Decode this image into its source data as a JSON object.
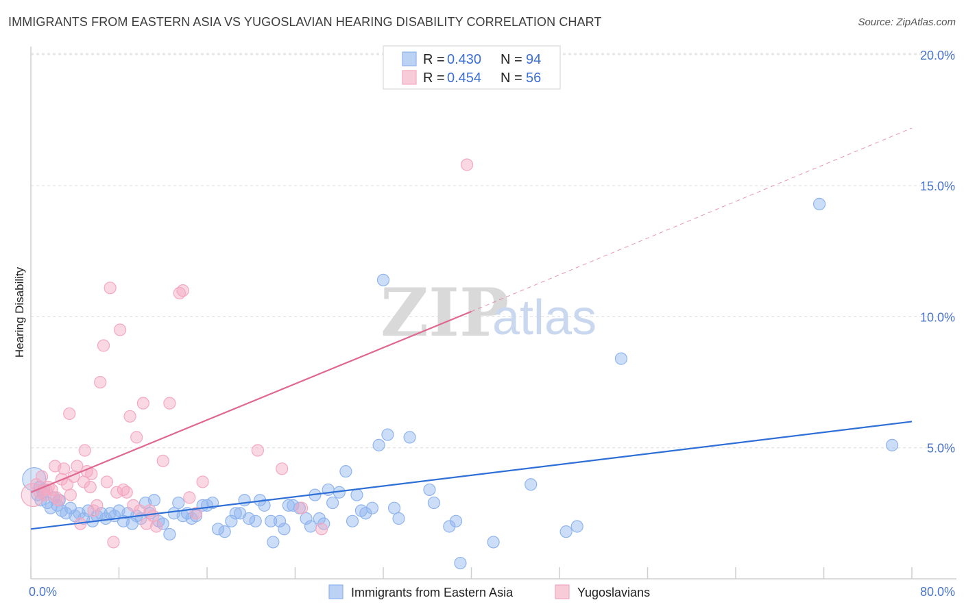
{
  "header": {
    "title": "IMMIGRANTS FROM EASTERN ASIA VS YUGOSLAVIAN HEARING DISABILITY CORRELATION CHART",
    "source": "Source: ZipAtlas.com"
  },
  "watermark": {
    "zip": "ZIP",
    "atlas": "atlas"
  },
  "chart_data": {
    "type": "scatter",
    "title": "IMMIGRANTS FROM EASTERN ASIA VS YUGOSLAVIAN HEARING DISABILITY CORRELATION CHART",
    "xlabel": "",
    "ylabel": "Hearing Disability",
    "xlim": [
      0,
      80
    ],
    "ylim": [
      0,
      20.5
    ],
    "x_tick_labels": [
      "0.0%",
      "80.0%"
    ],
    "y_ticks": [
      5,
      10,
      15,
      20
    ],
    "y_tick_labels": [
      "5.0%",
      "10.0%",
      "15.0%",
      "20.0%"
    ],
    "grid": "horizontal dashed",
    "legend_position": "top-center",
    "legend": [
      {
        "r_label": "R = ",
        "r": "0.430",
        "n_label": "N = ",
        "n": "94",
        "color": "#8fb4ee"
      },
      {
        "r_label": "R = ",
        "r": "0.454",
        "n_label": "N = ",
        "n": "56",
        "color": "#f4a8c0"
      }
    ],
    "series": [
      {
        "name": "Immigrants from Eastern Asia",
        "color": "#8fb4ee",
        "line_color": "#2d6fd6",
        "trend": {
          "x": [
            0,
            80
          ],
          "y": [
            1.9,
            6.0
          ],
          "dashed_extension": false
        },
        "points": [
          [
            0.3,
            3.8
          ],
          [
            0.6,
            3.2
          ],
          [
            0.9,
            3.0
          ],
          [
            1.2,
            3.4
          ],
          [
            1.5,
            2.9
          ],
          [
            1.8,
            2.7
          ],
          [
            2.1,
            3.1
          ],
          [
            2.4,
            2.8
          ],
          [
            2.8,
            2.6
          ],
          [
            3.2,
            2.5
          ],
          [
            3.6,
            2.7
          ],
          [
            4.0,
            2.4
          ],
          [
            4.4,
            2.5
          ],
          [
            4.8,
            2.3
          ],
          [
            5.2,
            2.6
          ],
          [
            5.6,
            2.2
          ],
          [
            6.0,
            2.4
          ],
          [
            6.4,
            2.5
          ],
          [
            6.8,
            2.3
          ],
          [
            7.2,
            2.5
          ],
          [
            7.6,
            2.4
          ],
          [
            8.0,
            2.6
          ],
          [
            8.4,
            2.2
          ],
          [
            8.8,
            2.5
          ],
          [
            9.2,
            2.1
          ],
          [
            9.6,
            2.4
          ],
          [
            10.0,
            2.3
          ],
          [
            10.4,
            2.9
          ],
          [
            10.8,
            2.5
          ],
          [
            11.2,
            3.0
          ],
          [
            11.6,
            2.2
          ],
          [
            12.0,
            2.1
          ],
          [
            12.6,
            1.7
          ],
          [
            13.0,
            2.5
          ],
          [
            13.4,
            2.9
          ],
          [
            13.8,
            2.4
          ],
          [
            14.2,
            2.5
          ],
          [
            14.6,
            2.3
          ],
          [
            15.0,
            2.4
          ],
          [
            15.6,
            2.8
          ],
          [
            16.0,
            2.8
          ],
          [
            16.5,
            2.9
          ],
          [
            17.0,
            1.9
          ],
          [
            17.6,
            1.8
          ],
          [
            18.2,
            2.2
          ],
          [
            18.6,
            2.5
          ],
          [
            19.0,
            2.5
          ],
          [
            19.4,
            3.0
          ],
          [
            19.8,
            2.3
          ],
          [
            20.4,
            2.2
          ],
          [
            20.8,
            3.0
          ],
          [
            21.2,
            2.8
          ],
          [
            21.8,
            2.2
          ],
          [
            22.0,
            1.4
          ],
          [
            22.6,
            2.2
          ],
          [
            23.0,
            1.9
          ],
          [
            23.4,
            2.8
          ],
          [
            23.8,
            2.8
          ],
          [
            24.4,
            2.7
          ],
          [
            25.0,
            2.3
          ],
          [
            25.4,
            2.0
          ],
          [
            25.8,
            3.2
          ],
          [
            26.2,
            2.3
          ],
          [
            26.6,
            2.1
          ],
          [
            27.0,
            3.4
          ],
          [
            27.4,
            2.9
          ],
          [
            28.0,
            3.3
          ],
          [
            28.6,
            4.1
          ],
          [
            29.2,
            2.2
          ],
          [
            29.6,
            3.2
          ],
          [
            30.0,
            2.6
          ],
          [
            30.4,
            2.5
          ],
          [
            31.0,
            2.7
          ],
          [
            31.6,
            5.1
          ],
          [
            32.4,
            5.5
          ],
          [
            32.0,
            11.4
          ],
          [
            33.0,
            2.7
          ],
          [
            33.4,
            2.3
          ],
          [
            34.4,
            5.4
          ],
          [
            36.2,
            3.4
          ],
          [
            36.6,
            2.9
          ],
          [
            38.0,
            2.0
          ],
          [
            38.6,
            2.2
          ],
          [
            39.0,
            0.6
          ],
          [
            42.0,
            1.4
          ],
          [
            45.4,
            3.6
          ],
          [
            48.6,
            1.8
          ],
          [
            49.6,
            2.0
          ],
          [
            53.6,
            8.4
          ],
          [
            71.6,
            14.3
          ],
          [
            78.2,
            5.1
          ],
          [
            0.8,
            3.5
          ],
          [
            1.1,
            3.3
          ],
          [
            2.6,
            3.0
          ]
        ]
      },
      {
        "name": "Yugoslavians",
        "color": "#f4a8c0",
        "line_color": "#e0678f",
        "trend": {
          "x": [
            0,
            40
          ],
          "y": [
            3.3,
            10.2
          ],
          "dashed_extension_to": [
            80,
            17.2
          ]
        },
        "points": [
          [
            0.2,
            3.2
          ],
          [
            0.5,
            3.6
          ],
          [
            0.8,
            3.3
          ],
          [
            1.0,
            3.9
          ],
          [
            1.3,
            3.2
          ],
          [
            1.6,
            3.5
          ],
          [
            1.9,
            3.4
          ],
          [
            2.2,
            4.3
          ],
          [
            2.5,
            3.0
          ],
          [
            2.8,
            3.8
          ],
          [
            3.0,
            4.2
          ],
          [
            3.3,
            3.6
          ],
          [
            3.6,
            3.2
          ],
          [
            3.9,
            3.9
          ],
          [
            4.2,
            4.3
          ],
          [
            4.5,
            2.1
          ],
          [
            4.8,
            3.7
          ],
          [
            5.1,
            4.1
          ],
          [
            5.4,
            3.5
          ],
          [
            5.7,
            2.6
          ],
          [
            6.0,
            2.8
          ],
          [
            6.3,
            7.5
          ],
          [
            6.6,
            8.9
          ],
          [
            6.9,
            3.7
          ],
          [
            7.2,
            11.1
          ],
          [
            7.5,
            1.4
          ],
          [
            7.8,
            3.3
          ],
          [
            8.1,
            9.5
          ],
          [
            8.4,
            3.4
          ],
          [
            8.7,
            3.3
          ],
          [
            9.0,
            6.2
          ],
          [
            9.3,
            2.8
          ],
          [
            9.6,
            5.4
          ],
          [
            9.9,
            2.6
          ],
          [
            10.2,
            6.7
          ],
          [
            10.5,
            2.1
          ],
          [
            10.8,
            2.6
          ],
          [
            11.1,
            2.4
          ],
          [
            11.4,
            2.0
          ],
          [
            12.0,
            4.5
          ],
          [
            12.6,
            6.7
          ],
          [
            13.5,
            10.9
          ],
          [
            13.8,
            11.0
          ],
          [
            14.4,
            3.1
          ],
          [
            15.0,
            2.5
          ],
          [
            15.6,
            3.7
          ],
          [
            20.6,
            4.9
          ],
          [
            22.8,
            4.2
          ],
          [
            24.6,
            2.7
          ],
          [
            26.4,
            1.9
          ],
          [
            39.6,
            15.8
          ],
          [
            3.5,
            6.3
          ],
          [
            4.9,
            4.9
          ],
          [
            2.3,
            3.1
          ],
          [
            1.4,
            3.4
          ],
          [
            5.5,
            4.0
          ]
        ]
      }
    ]
  },
  "bottom_legend": [
    {
      "label": "Immigrants from Eastern Asia",
      "color": "#8fb4ee"
    },
    {
      "label": "Yugoslavians",
      "color": "#f4a8c0"
    }
  ]
}
